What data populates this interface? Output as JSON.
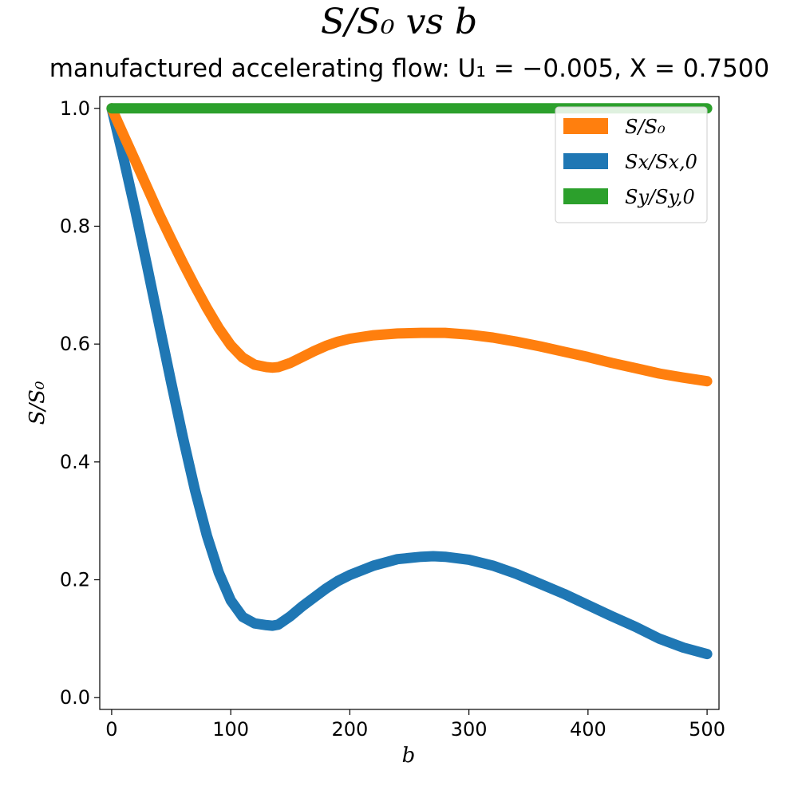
{
  "figure": {
    "title": "S/S₀ vs b",
    "subtitle": "manufactured accelerating flow: U₁ = −0.005, X = 0.7500"
  },
  "chart_data": {
    "type": "line",
    "title": "S/S₀ vs b",
    "subtitle": "manufactured accelerating flow: U₁ = −0.005, X = 0.7500",
    "xlabel": "b",
    "ylabel": "S/S₀",
    "xlim": [
      -10,
      510
    ],
    "ylim": [
      -0.02,
      1.02
    ],
    "xticks": [
      0,
      100,
      200,
      300,
      400,
      500
    ],
    "yticks": [
      0.0,
      0.2,
      0.4,
      0.6,
      0.8,
      1.0
    ],
    "xtick_labels": [
      "0",
      "100",
      "200",
      "300",
      "400",
      "500"
    ],
    "ytick_labels": [
      "0.0",
      "0.2",
      "0.4",
      "0.6",
      "0.8",
      "1.0"
    ],
    "grid": false,
    "legend_position": "top-right",
    "series": [
      {
        "name": "S/S₀",
        "color": "#ff7f0e",
        "x": [
          0,
          10,
          20,
          30,
          40,
          50,
          60,
          70,
          80,
          90,
          100,
          110,
          120,
          130,
          135,
          140,
          150,
          160,
          170,
          180,
          190,
          200,
          220,
          240,
          260,
          270,
          280,
          300,
          320,
          340,
          360,
          380,
          400,
          420,
          440,
          460,
          480,
          500
        ],
        "y": [
          1.0,
          0.955,
          0.91,
          0.865,
          0.82,
          0.778,
          0.737,
          0.698,
          0.661,
          0.627,
          0.598,
          0.577,
          0.565,
          0.561,
          0.56,
          0.561,
          0.568,
          0.578,
          0.588,
          0.597,
          0.604,
          0.609,
          0.615,
          0.618,
          0.619,
          0.619,
          0.619,
          0.616,
          0.611,
          0.604,
          0.596,
          0.587,
          0.578,
          0.568,
          0.559,
          0.55,
          0.543,
          0.537
        ]
      },
      {
        "name": "Sx/Sx,0",
        "color": "#1f77b4",
        "x": [
          0,
          10,
          20,
          30,
          40,
          50,
          60,
          70,
          80,
          90,
          100,
          110,
          120,
          130,
          135,
          140,
          150,
          160,
          170,
          180,
          190,
          200,
          220,
          240,
          260,
          270,
          280,
          300,
          320,
          340,
          360,
          380,
          400,
          420,
          440,
          460,
          480,
          500
        ],
        "y": [
          1.0,
          0.915,
          0.825,
          0.73,
          0.632,
          0.535,
          0.44,
          0.352,
          0.275,
          0.212,
          0.165,
          0.137,
          0.126,
          0.123,
          0.122,
          0.124,
          0.138,
          0.155,
          0.17,
          0.185,
          0.198,
          0.208,
          0.224,
          0.235,
          0.239,
          0.24,
          0.239,
          0.234,
          0.224,
          0.21,
          0.193,
          0.176,
          0.157,
          0.138,
          0.12,
          0.1,
          0.085,
          0.074
        ]
      },
      {
        "name": "Sy/Sy,0",
        "color": "#2ca02c",
        "x": [
          0,
          100,
          200,
          300,
          400,
          500
        ],
        "y": [
          1.0,
          1.0,
          1.0,
          1.0,
          1.0,
          1.0
        ]
      }
    ]
  }
}
